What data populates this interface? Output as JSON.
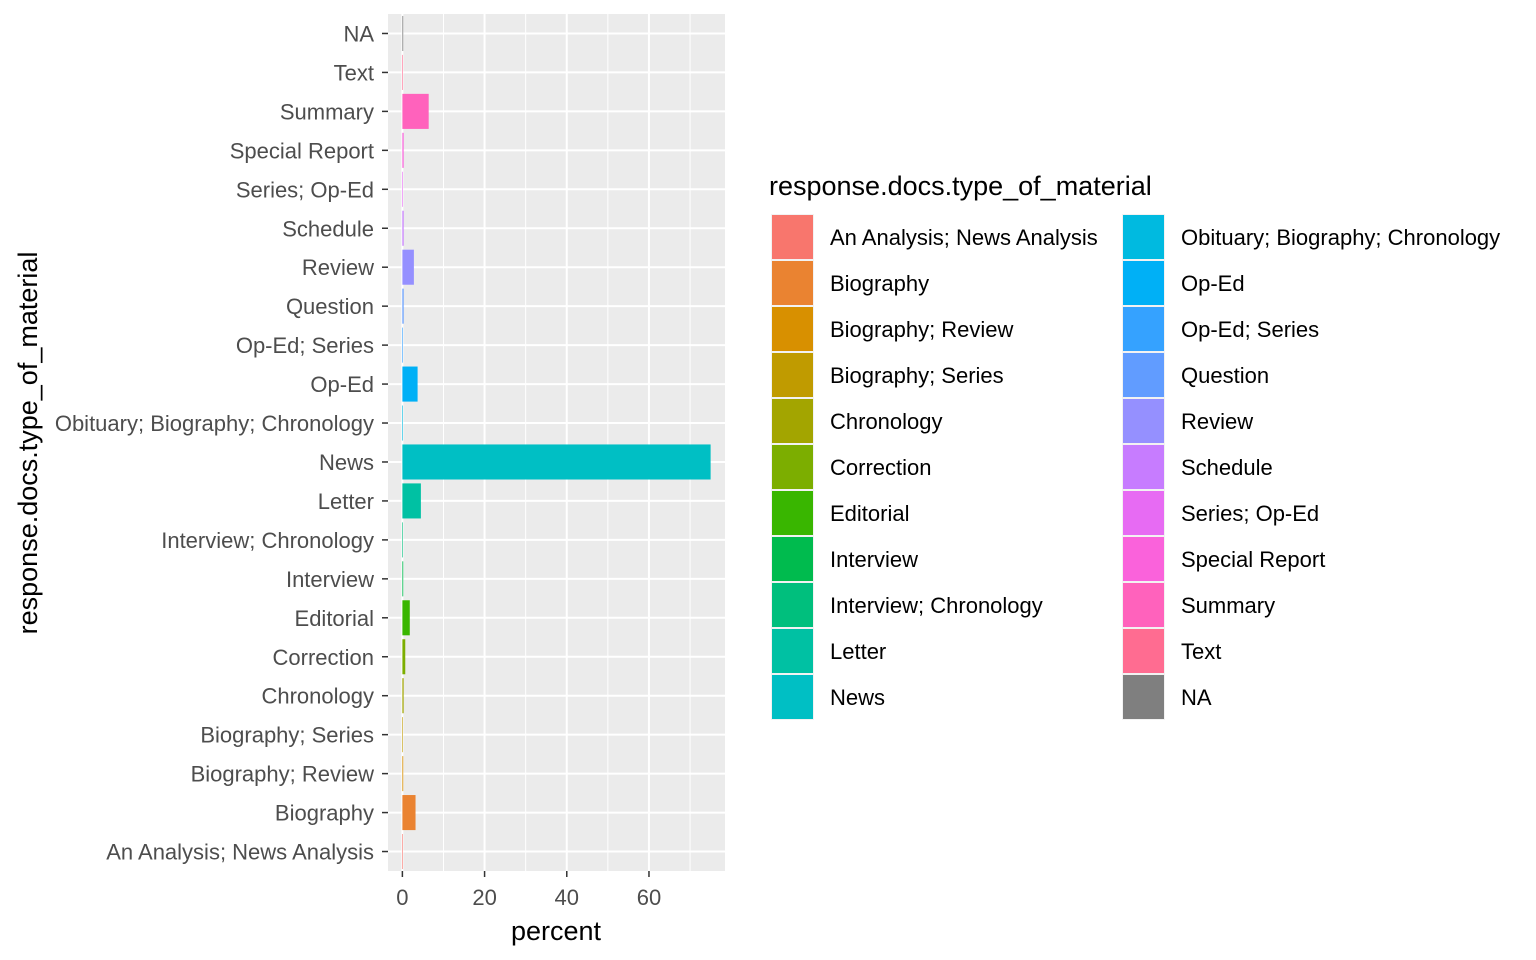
{
  "chart_data": {
    "type": "bar",
    "orientation": "horizontal",
    "xlabel": "percent",
    "ylabel": "response.docs.type_of_material",
    "xlim": [
      -3.5,
      78.5
    ],
    "xticks": [
      0,
      20,
      40,
      60
    ],
    "grid": true,
    "legend_position": "right",
    "legend": {
      "title": "response.docs.type_of_material",
      "columns": 2
    },
    "categories": [
      "An Analysis; News Analysis",
      "Biography",
      "Biography; Review",
      "Biography; Series",
      "Chronology",
      "Correction",
      "Editorial",
      "Interview",
      "Interview; Chronology",
      "Letter",
      "News",
      "Obituary; Biography; Chronology",
      "Op-Ed",
      "Op-Ed; Series",
      "Question",
      "Review",
      "Schedule",
      "Series; Op-Ed",
      "Special Report",
      "Summary",
      "Text",
      "NA"
    ],
    "values": [
      0.1,
      3.2,
      0.2,
      0.05,
      0.3,
      0.7,
      1.8,
      0.2,
      0.05,
      4.5,
      75.0,
      0.05,
      3.7,
      0.05,
      0.3,
      2.8,
      0.3,
      0.05,
      0.3,
      6.4,
      0.05,
      0.2
    ],
    "colors": [
      "#F8766D",
      "#EA8331",
      "#D89000",
      "#C09B00",
      "#A3A500",
      "#7CAE00",
      "#39B600",
      "#00BB4E",
      "#00BF7D",
      "#00C1A3",
      "#00BFC4",
      "#00BAE0",
      "#00B0F6",
      "#35A2FF",
      "#619CFF",
      "#9590FF",
      "#C77CFF",
      "#E76BF3",
      "#FA62DB",
      "#FF62BC",
      "#FF6C91",
      "#7F7F7F"
    ]
  }
}
